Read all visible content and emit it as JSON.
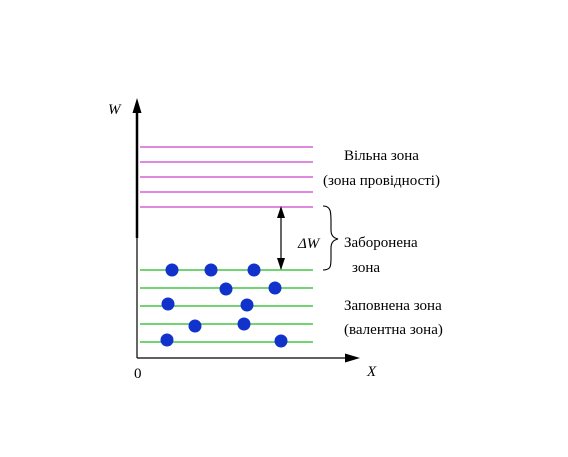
{
  "axes": {
    "y_label": "W",
    "x_label": "X",
    "origin_label": "0"
  },
  "bands": {
    "conduction": {
      "line1": "Вільна зона",
      "line2": "(зона провідності)",
      "line_count": 5,
      "color": "#cc44cc"
    },
    "gap": {
      "symbol": "ΔW",
      "line1": "Заборонена",
      "line2": "зона"
    },
    "valence": {
      "line1": "Заповнена зона",
      "line2": "(валентна зона)",
      "line_count": 5,
      "color": "#22bb22"
    }
  },
  "electrons": {
    "color": "#1133cc",
    "count": 11
  }
}
